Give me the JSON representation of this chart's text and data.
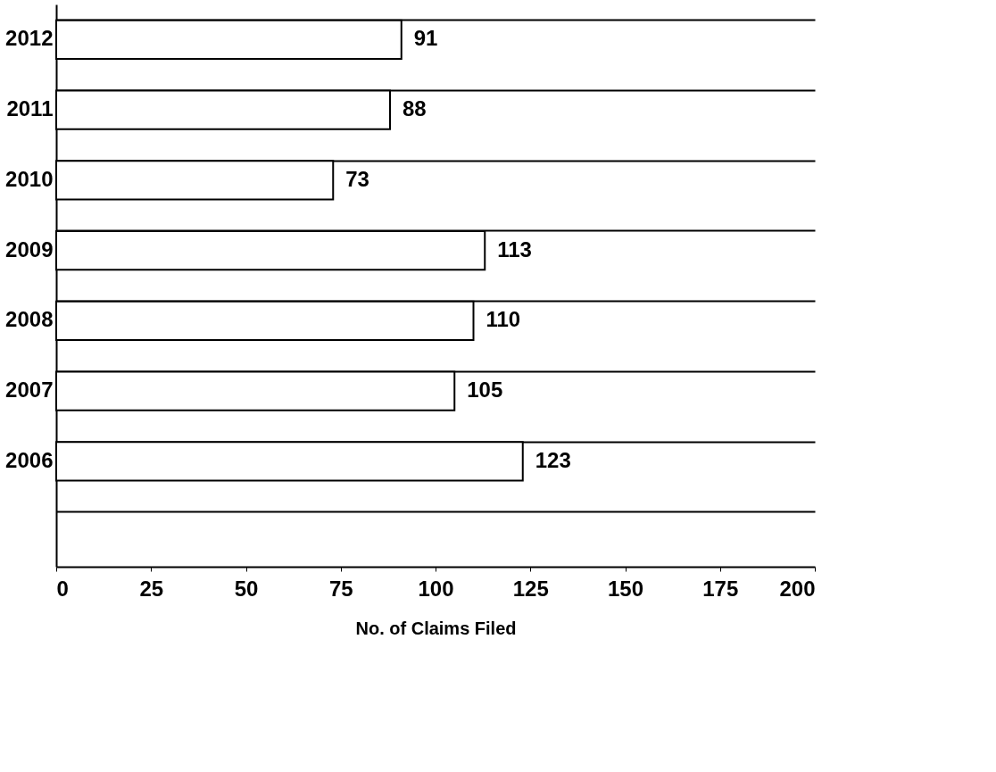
{
  "chart_data": {
    "type": "bar",
    "orientation": "horizontal",
    "xlabel": "No. of Claims Filed",
    "categories": [
      "2012",
      "2011",
      "2010",
      "2009",
      "2008",
      "2007",
      "2006",
      null
    ],
    "values": [
      91,
      88,
      73,
      113,
      110,
      105,
      123,
      null
    ],
    "color": "#ffffff",
    "xlim": [
      0,
      200
    ],
    "xticks": [
      0,
      25,
      50,
      75,
      100,
      125,
      150,
      175,
      200
    ],
    "grid": "y",
    "data_labels": true
  }
}
